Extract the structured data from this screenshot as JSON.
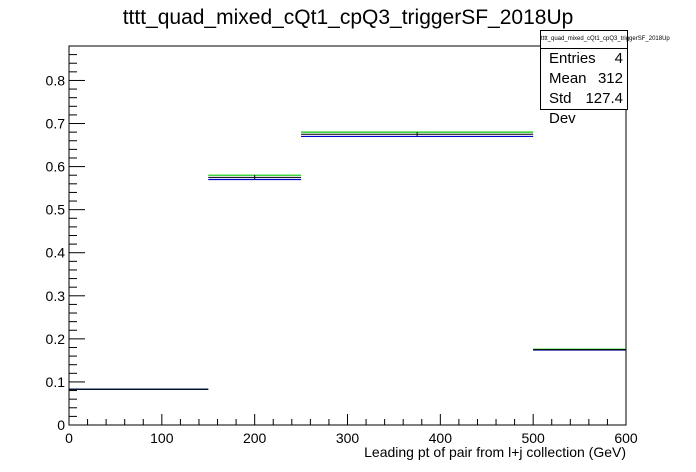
{
  "title": "tttt_quad_mixed_cQt1_cpQ3_triggerSF_2018Up",
  "stats": {
    "name": "tttt_quad_mixed_cQt1_cpQ3_triggerSF_2018Up",
    "rows": [
      {
        "label": "Entries",
        "value": "4"
      },
      {
        "label": "Mean",
        "value": "312"
      },
      {
        "label": "Std Dev",
        "value": "127.4"
      }
    ]
  },
  "chart_data": {
    "type": "histogram-step",
    "title": "tttt_quad_mixed_cQt1_cpQ3_triggerSF_2018Up",
    "xlabel": "Leading pt of pair from l+j collection (GeV)",
    "ylabel": "",
    "xlim": [
      0,
      600
    ],
    "ylim": [
      0,
      0.88
    ],
    "x_ticks": [
      0,
      100,
      200,
      300,
      400,
      500,
      600
    ],
    "y_ticks": [
      0,
      0.1,
      0.2,
      0.3,
      0.4,
      0.5,
      0.6,
      0.7,
      0.8
    ],
    "grid": false,
    "bins": [
      {
        "x_low": 0,
        "x_high": 150,
        "value": 0.083
      },
      {
        "x_low": 150,
        "x_high": 250,
        "value": 0.575
      },
      {
        "x_low": 250,
        "x_high": 500,
        "value": 0.675
      },
      {
        "x_low": 500,
        "x_high": 600,
        "value": 0.175
      }
    ],
    "band_upper": [
      0.083,
      0.58,
      0.68,
      0.176
    ],
    "band_lower": [
      0.083,
      0.57,
      0.67,
      0.174
    ],
    "colors": {
      "nominal": "#000000",
      "upper": "#00cc00",
      "lower": "#0000cc"
    }
  }
}
